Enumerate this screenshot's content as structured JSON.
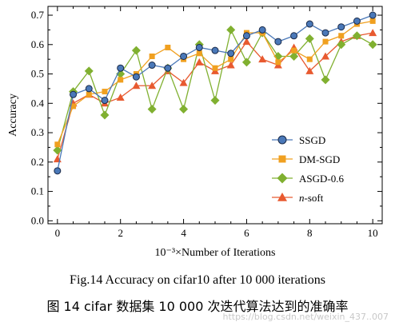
{
  "chart_data": {
    "type": "line",
    "xlabel": "10⁻³×Number of Iterations",
    "ylabel": "Accuracy",
    "xlim": [
      -0.3,
      10.3
    ],
    "ylim": [
      -0.01,
      0.73
    ],
    "xticks": [
      0,
      2,
      4,
      6,
      8,
      10
    ],
    "yticks": [
      0.0,
      0.1,
      0.2,
      0.3,
      0.4,
      0.5,
      0.6,
      0.7
    ],
    "ytick_labels": [
      "0.0",
      "0.1",
      "0.2",
      "0.3",
      "0.4",
      "0.5",
      "0.6",
      "0.7"
    ],
    "grid": false,
    "legend_position": "right",
    "x": [
      0,
      0.5,
      1,
      1.5,
      2,
      2.5,
      3,
      3.5,
      4,
      4.5,
      5,
      5.5,
      6,
      6.5,
      7,
      7.5,
      8,
      8.5,
      9,
      9.5,
      10
    ],
    "series": [
      {
        "name": "SSGD",
        "color": "#4a78b8",
        "marker": "circle",
        "values": [
          0.17,
          0.43,
          0.45,
          0.41,
          0.52,
          0.49,
          0.53,
          0.52,
          0.56,
          0.59,
          0.58,
          0.57,
          0.63,
          0.65,
          0.61,
          0.63,
          0.67,
          0.64,
          0.66,
          0.68,
          0.7
        ]
      },
      {
        "name": "DM-SGD",
        "color": "#f0a020",
        "marker": "square",
        "values": [
          0.26,
          0.39,
          0.43,
          0.44,
          0.48,
          0.5,
          0.56,
          0.59,
          0.55,
          0.57,
          0.52,
          0.55,
          0.64,
          0.64,
          0.54,
          0.58,
          0.55,
          0.61,
          0.63,
          0.67,
          0.68
        ]
      },
      {
        "name": "ASGD-0.6",
        "color": "#80b030",
        "marker": "diamond",
        "values": [
          0.24,
          0.44,
          0.51,
          0.36,
          0.5,
          0.58,
          0.38,
          0.52,
          0.38,
          0.6,
          0.41,
          0.65,
          0.54,
          0.64,
          0.56,
          0.56,
          0.62,
          0.48,
          0.6,
          0.63,
          0.6
        ]
      },
      {
        "name": "n-soft",
        "name_prefix_italic": "n",
        "name_suffix": "-soft",
        "color": "#e85a30",
        "marker": "triangle",
        "values": [
          0.21,
          0.4,
          0.43,
          0.4,
          0.42,
          0.46,
          0.46,
          0.51,
          0.47,
          0.54,
          0.51,
          0.53,
          0.61,
          0.55,
          0.53,
          0.59,
          0.51,
          0.56,
          0.61,
          0.63,
          0.64
        ]
      }
    ]
  },
  "caption": {
    "english": "Fig.14   Accuracy on cifar10 after 10 000 iterations",
    "chinese": "图 14   cifar 数据集 10 000 次迭代算法达到的准确率"
  },
  "watermark": "https://blog.csdn.net/weixin_437..007"
}
